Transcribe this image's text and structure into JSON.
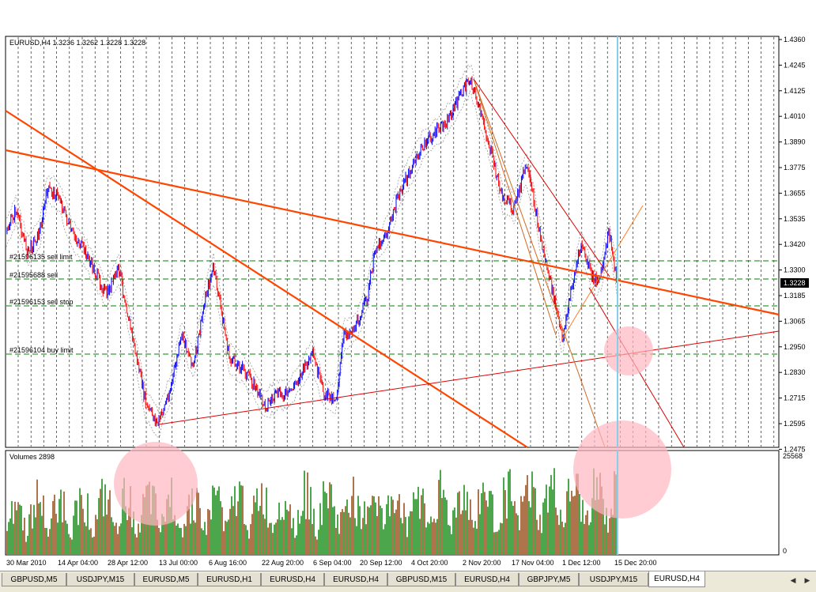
{
  "chart": {
    "info_label": "EURUSD,H4  1.3236 1.3262 1.3228 1.3228",
    "current_price": "1.3228",
    "volume_label": "Volumes 2898",
    "volume_max": "25568",
    "volume_min": "0",
    "price_levels": [
      "1.4360",
      "1.4245",
      "1.4125",
      "1.4010",
      "1.3890",
      "1.3775",
      "1.3655",
      "1.3535",
      "1.3420",
      "1.3300",
      "1.3185",
      "1.3065",
      "1.2950",
      "1.2830",
      "1.2715",
      "1.2595",
      "1.2475"
    ],
    "time_labels": [
      "30 Mar 2010",
      "14 Apr 04:00",
      "28 Apr 12:00",
      "13 Jul 00:00",
      "6 Aug 16:00",
      "22 Aug 20:00",
      "6 Sep 04:00",
      "20 Sep 12:00",
      "4 Oct 20:00",
      "2 Nov 20:00",
      "17 Nov 04:00",
      "1 Dec 12:00",
      "15 Dec 20:00"
    ],
    "orders": [
      {
        "label": "#21596135 sell limit"
      },
      {
        "label": "#21595688 sell"
      },
      {
        "label": "#21596153 sell stop"
      },
      {
        "label": "#21596104 buy limit"
      }
    ],
    "colors": {
      "bull": "#0000ff",
      "bear": "#ff0000",
      "envelope": "#9a9a9a",
      "trendline": "#ff4500",
      "order_line": "#008000",
      "vol_green": "#008000",
      "vol_brown": "#8b3a00",
      "highlight": "#ffb6c1"
    }
  },
  "tabs": [
    {
      "label": "GBPUSD,M5"
    },
    {
      "label": "USDJPY,M15"
    },
    {
      "label": "EURUSD,M5"
    },
    {
      "label": "EURUSD,H1"
    },
    {
      "label": "EURUSD,H4"
    },
    {
      "label": "EURUSD,H4"
    },
    {
      "label": "GBPUSD,M15"
    },
    {
      "label": "EURUSD,H4"
    },
    {
      "label": "GBPJPY,M5"
    },
    {
      "label": "USDJPY,M15"
    },
    {
      "label": "EURUSD,H4"
    }
  ],
  "active_tab": 10,
  "nav": {
    "left": "◀",
    "right": "▶"
  }
}
